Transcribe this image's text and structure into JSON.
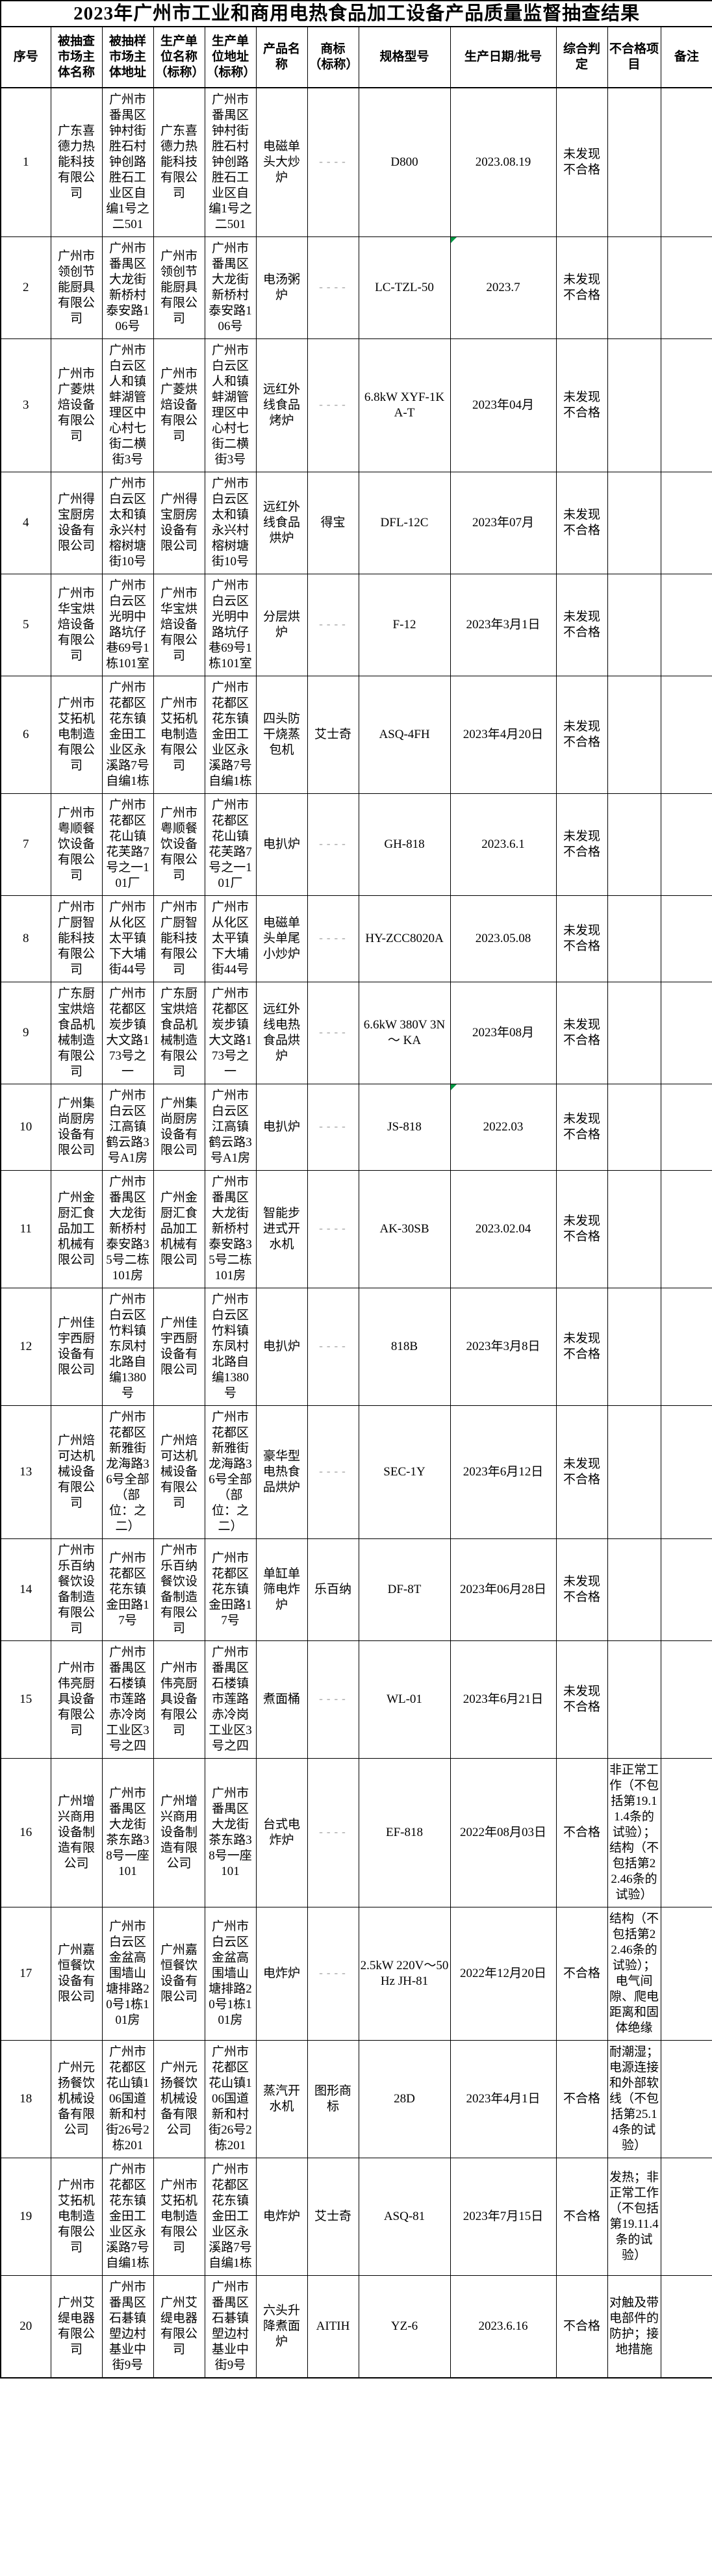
{
  "title": "2023年广州市工业和商用电热食品加工设备产品质量监督抽查结果",
  "colors": {
    "border": "#000000",
    "text": "#000000",
    "dash_placeholder": "#9e9e9e",
    "excel_flag_green": "#009944",
    "background": "#ffffff"
  },
  "table": {
    "column_keys": [
      "serial",
      "entity-name",
      "entity-address",
      "producer-name",
      "producer-address",
      "product-name",
      "trademark",
      "model",
      "production-date",
      "verdict",
      "defect-items",
      "remarks"
    ],
    "headers": [
      "序号",
      "被抽查市场主体名称",
      "被抽样市场主体地址",
      "生产单位名称（标称）",
      "生产单位地址（标称）",
      "产品名称",
      "商标（标称）",
      "规格型号",
      "生产日期/批号",
      "综合判定",
      "不合格项目",
      "备注"
    ],
    "placeholder_dash": "----",
    "date_flags": [
      "2",
      "10"
    ],
    "rows": [
      [
        "1",
        "广东喜德力热能科技有限公司",
        "广州市番禺区钟村街胜石村钟创路胜石工业区自编1号之二501",
        "广东喜德力热能科技有限公司",
        "广州市番禺区钟村街胜石村钟创路胜石工业区自编1号之二501",
        "电磁单头大炒炉",
        "----",
        "D800",
        "2023.08.19",
        "未发现不合格",
        "",
        ""
      ],
      [
        "2",
        "广州市领创节能厨具有限公司",
        "广州市番禺区大龙街新桥村泰安路106号",
        "广州市领创节能厨具有限公司",
        "广州市番禺区大龙街新桥村泰安路106号",
        "电汤粥炉",
        "----",
        "LC-TZL-50",
        "2023.7",
        "未发现不合格",
        "",
        ""
      ],
      [
        "3",
        "广州市广菱烘焙设备有限公司",
        "广州市白云区人和镇蚌湖管理区中心村七街二横街3号",
        "广州市广菱烘焙设备有限公司",
        "广州市白云区人和镇蚌湖管理区中心村七街二横街3号",
        "远红外线食品烤炉",
        "----",
        "6.8kW XYF-1KA-T",
        "2023年04月",
        "未发现不合格",
        "",
        ""
      ],
      [
        "4",
        "广州得宝厨房设备有限公司",
        "广州市白云区太和镇永兴村榕树塘街10号",
        "广州得宝厨房设备有限公司",
        "广州市白云区太和镇永兴村榕树塘街10号",
        "远红外线食品烘炉",
        "得宝",
        "DFL-12C",
        "2023年07月",
        "未发现不合格",
        "",
        ""
      ],
      [
        "5",
        "广州市华宝烘焙设备有限公司",
        "广州市白云区光明中路坑仔巷69号1栋101室",
        "广州市华宝烘焙设备有限公司",
        "广州市白云区光明中路坑仔巷69号1栋101室",
        "分层烘炉",
        "----",
        "F-12",
        "2023年3月1日",
        "未发现不合格",
        "",
        ""
      ],
      [
        "6",
        "广州市艾拓机电制造有限公司",
        "广州市花都区花东镇金田工业区永溪路7号自编1栋",
        "广州市艾拓机电制造有限公司",
        "广州市花都区花东镇金田工业区永溪路7号自编1栋",
        "四头防干烧蒸包机",
        "艾士奇",
        "ASQ-4FH",
        "2023年4月20日",
        "未发现不合格",
        "",
        ""
      ],
      [
        "7",
        "广州市粤顺餐饮设备有限公司",
        "广州市花都区花山镇花芙路7号之一101厂",
        "广州市粤顺餐饮设备有限公司",
        "广州市花都区花山镇花芙路7号之一101厂",
        "电扒炉",
        "----",
        "GH-818",
        "2023.6.1",
        "未发现不合格",
        "",
        ""
      ],
      [
        "8",
        "广州市广厨智能科技有限公司",
        "广州市从化区太平镇下大埔街44号",
        "广州市广厨智能科技有限公司",
        "广州市从化区太平镇下大埔街44号",
        "电磁单头单尾小炒炉",
        "----",
        "HY-ZCC8020A",
        "2023.05.08",
        "未发现不合格",
        "",
        ""
      ],
      [
        "9",
        "广东厨宝烘焙食品机械制造有限公司",
        "广州市花都区炭步镇大文路173号之一",
        "广东厨宝烘焙食品机械制造有限公司",
        "广州市花都区炭步镇大文路173号之一",
        "远红外线电热食品烘炉",
        "----",
        "6.6kW 380V 3N～ KA",
        "2023年08月",
        "未发现不合格",
        "",
        ""
      ],
      [
        "10",
        "广州集尚厨房设备有限公司",
        "广州市白云区江高镇鹤云路3号A1房",
        "广州集尚厨房设备有限公司",
        "广州市白云区江高镇鹤云路3号A1房",
        "电扒炉",
        "----",
        "JS-818",
        "2022.03",
        "未发现不合格",
        "",
        ""
      ],
      [
        "11",
        "广州金厨汇食品加工机械有限公司",
        "广州市番禺区大龙街新桥村泰安路35号二栋101房",
        "广州金厨汇食品加工机械有限公司",
        "广州市番禺区大龙街新桥村泰安路35号二栋101房",
        "智能步进式开水机",
        "----",
        "AK-30SB",
        "2023.02.04",
        "未发现不合格",
        "",
        ""
      ],
      [
        "12",
        "广州佳宇西厨设备有限公司",
        "广州市白云区竹料镇东凤村北路自编1380号",
        "广州佳宇西厨设备有限公司",
        "广州市白云区竹料镇东凤村北路自编1380号",
        "电扒炉",
        "----",
        "818B",
        "2023年3月8日",
        "未发现不合格",
        "",
        ""
      ],
      [
        "13",
        "广州焙可达机械设备有限公司",
        "广州市花都区新雅街龙海路36号全部（部位：之二）",
        "广州焙可达机械设备有限公司",
        "广州市花都区新雅街龙海路36号全部（部位：之二）",
        "豪华型电热食品烘炉",
        "----",
        "SEC-1Y",
        "2023年6月12日",
        "未发现不合格",
        "",
        ""
      ],
      [
        "14",
        "广州市乐百纳餐饮设备制造有限公司",
        "广州市花都区花东镇金田路17号",
        "广州市乐百纳餐饮设备制造有限公司",
        "广州市花都区花东镇金田路17号",
        "单缸单筛电炸炉",
        "乐百纳",
        "DF-8T",
        "2023年06月28日",
        "未发现不合格",
        "",
        ""
      ],
      [
        "15",
        "广州市伟亮厨具设备有限公司",
        "广州市番禺区石楼镇市莲路赤冷岗工业区3号之四",
        "广州市伟亮厨具设备有限公司",
        "广州市番禺区石楼镇市莲路赤冷岗工业区3号之四",
        "煮面桶",
        "----",
        "WL-01",
        "2023年6月21日",
        "未发现不合格",
        "",
        ""
      ],
      [
        "16",
        "广州增兴商用设备制造有限公司",
        "广州市番禺区大龙街茶东路38号一座101",
        "广州增兴商用设备制造有限公司",
        "广州市番禺区大龙街茶东路38号一座101",
        "台式电炸炉",
        "----",
        "EF-818",
        "2022年08月03日",
        "不合格",
        "非正常工作（不包括第19.11.4条的试验）；结构（不包括第22.46条的试验）",
        ""
      ],
      [
        "17",
        "广州嘉恒餐饮设备有限公司",
        "广州市白云区金盆高围墙山塘排路20号1栋101房",
        "广州嘉恒餐饮设备有限公司",
        "广州市白云区金盆高围墙山塘排路20号1栋101房",
        "电炸炉",
        "----",
        "2.5kW 220V～50Hz JH-81",
        "2022年12月20日",
        "不合格",
        "结构（不包括第22.46条的试验）；电气间隙、爬电距离和固体绝缘",
        ""
      ],
      [
        "18",
        "广州元扬餐饮机械设备有限公司",
        "广州市花都区花山镇106国道新和村街26号2栋201",
        "广州元扬餐饮机械设备有限公司",
        "广州市花都区花山镇106国道新和村街26号2栋201",
        "蒸汽开水机",
        "图形商标",
        "28D",
        "2023年4月1日",
        "不合格",
        "耐潮湿；电源连接和外部软线（不包括第25.14条的试验）",
        ""
      ],
      [
        "19",
        "广州市艾拓机电制造有限公司",
        "广州市花都区花东镇金田工业区永溪路7号自编1栋",
        "广州市艾拓机电制造有限公司",
        "广州市花都区花东镇金田工业区永溪路7号自编1栋",
        "电炸炉",
        "艾士奇",
        "ASQ-81",
        "2023年7月15日",
        "不合格",
        "发热；非正常工作（不包括第19.11.4条的试验）",
        ""
      ],
      [
        "20",
        "广州艾缇电器有限公司",
        "广州市番禺区石碁镇塱边村基业中街9号",
        "广州艾缇电器有限公司",
        "广州市番禺区石碁镇塱边村基业中街9号",
        "六头升降煮面炉",
        "AITIH",
        "YZ-6",
        "2023.6.16",
        "不合格",
        "对触及带电部件的防护；接地措施",
        ""
      ]
    ]
  }
}
